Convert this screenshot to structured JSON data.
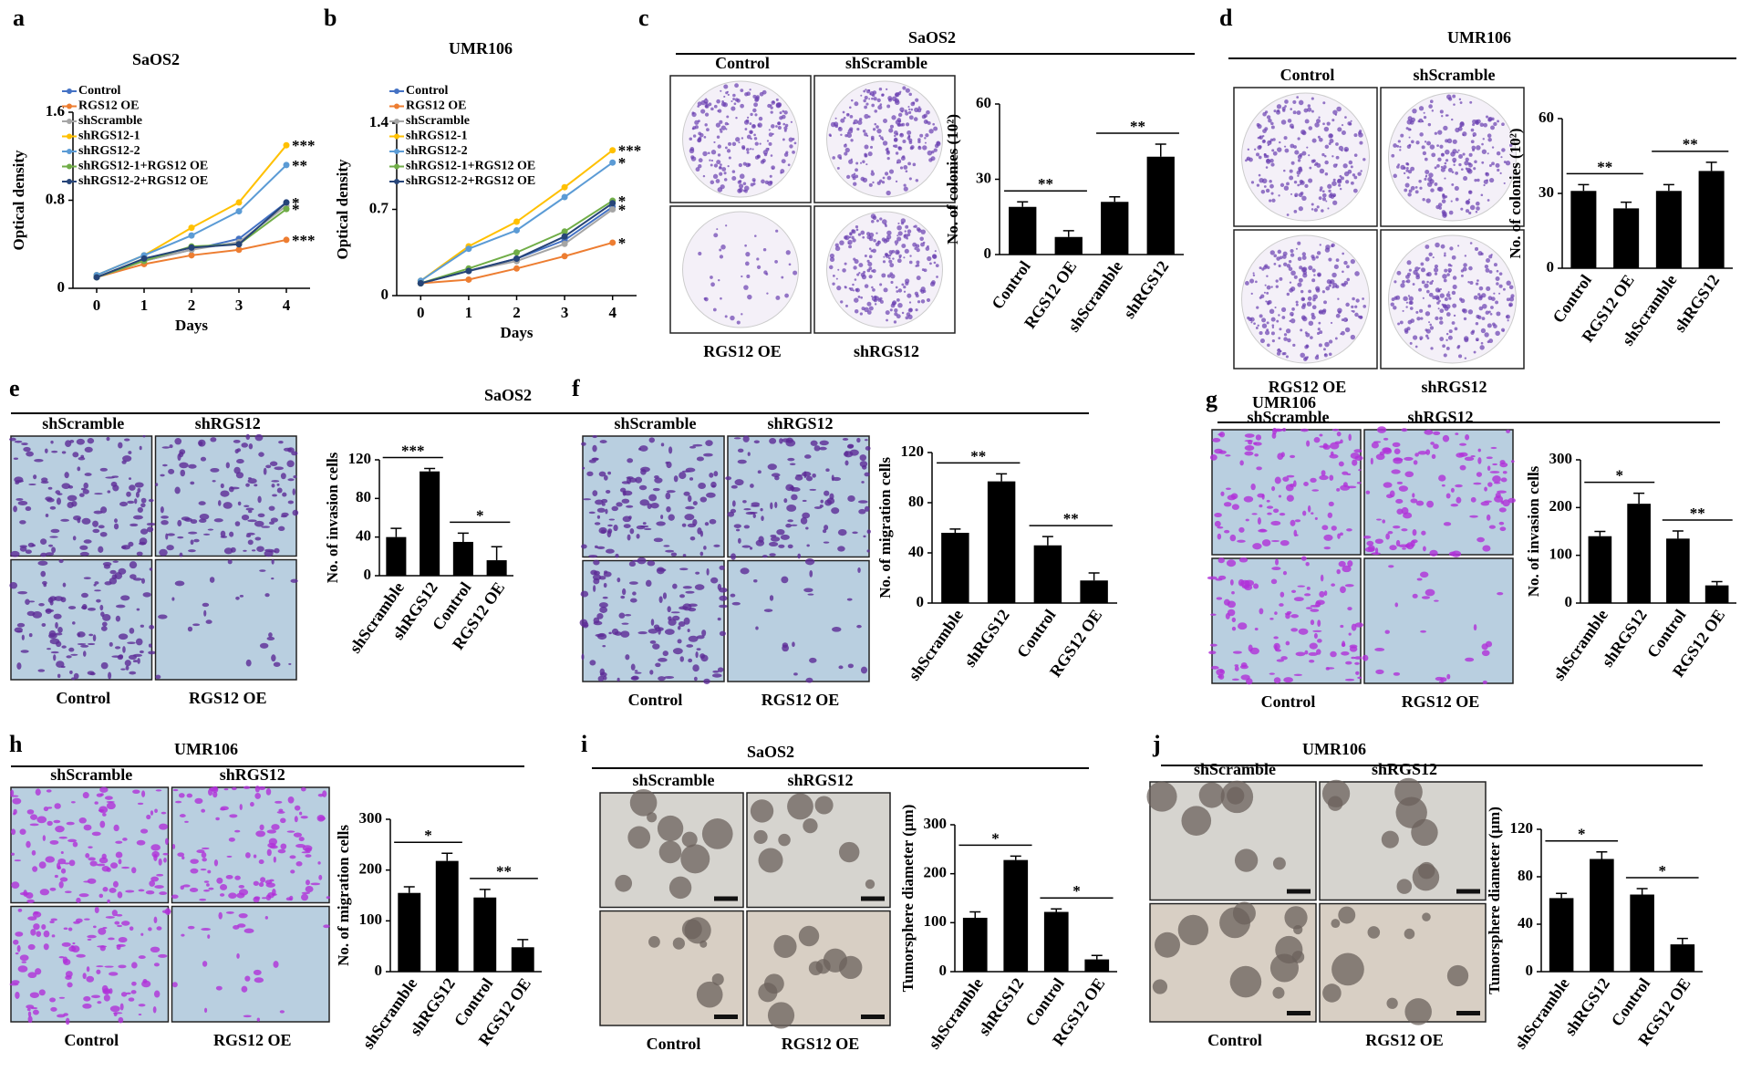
{
  "chart_data": [
    {
      "type": "line",
      "panel": "a",
      "title": "SaOS2",
      "ylabel": "Optical density",
      "xlabel": "Days",
      "xlim": [
        -0.5,
        4.5
      ],
      "xticks": [
        0,
        1,
        2,
        3,
        4
      ],
      "ylim": [
        0,
        1.6
      ],
      "yticks": [
        0,
        0.8,
        1.6
      ],
      "x": [
        0,
        1,
        2,
        3,
        4
      ],
      "series": [
        {
          "name": "Control",
          "color": "#4472c4",
          "values": [
            0.1,
            0.25,
            0.35,
            0.45,
            0.78
          ]
        },
        {
          "name": "RGS12 OE",
          "color": "#ed7d31",
          "values": [
            0.1,
            0.22,
            0.3,
            0.35,
            0.44
          ],
          "annotation": "***"
        },
        {
          "name": "shScramble",
          "color": "#a5a5a5",
          "values": [
            0.1,
            0.25,
            0.35,
            0.42,
            0.75
          ]
        },
        {
          "name": "shRGS12-1",
          "color": "#ffc000",
          "values": [
            0.12,
            0.3,
            0.55,
            0.78,
            1.3
          ],
          "annotation": "***"
        },
        {
          "name": "shRGS12-2",
          "color": "#5b9bd5",
          "values": [
            0.12,
            0.3,
            0.48,
            0.7,
            1.12
          ],
          "annotation": "**"
        },
        {
          "name": "shRGS12-1+RGS12 OE",
          "color": "#70ad47",
          "values": [
            0.1,
            0.25,
            0.38,
            0.4,
            0.72
          ],
          "annotation": "*"
        },
        {
          "name": "shRGS12-2+RGS12 OE",
          "color": "#264478",
          "values": [
            0.1,
            0.27,
            0.37,
            0.4,
            0.78
          ],
          "annotation": "*"
        }
      ]
    },
    {
      "type": "line",
      "panel": "b",
      "title": "UMR106",
      "ylabel": "Optical  density",
      "xlabel": "Days",
      "xlim": [
        -0.5,
        4.5
      ],
      "xticks": [
        0,
        1,
        2,
        3,
        4
      ],
      "ylim": [
        0,
        1.4
      ],
      "yticks": [
        0,
        0.7,
        1.4
      ],
      "x": [
        0,
        1,
        2,
        3,
        4
      ],
      "series": [
        {
          "name": "Control",
          "color": "#4472c4",
          "values": [
            0.1,
            0.2,
            0.3,
            0.45,
            0.72
          ]
        },
        {
          "name": "RGS12 OE",
          "color": "#ed7d31",
          "values": [
            0.1,
            0.13,
            0.22,
            0.32,
            0.43
          ],
          "annotation": "*"
        },
        {
          "name": "shScramble",
          "color": "#a5a5a5",
          "values": [
            0.1,
            0.2,
            0.28,
            0.42,
            0.7
          ],
          "annotation": "*"
        },
        {
          "name": "shRGS12-1",
          "color": "#ffc000",
          "values": [
            0.12,
            0.4,
            0.6,
            0.88,
            1.18
          ],
          "annotation": "***"
        },
        {
          "name": "shRGS12-2",
          "color": "#5b9bd5",
          "values": [
            0.12,
            0.38,
            0.53,
            0.8,
            1.08
          ],
          "annotation": "*"
        },
        {
          "name": "shRGS12-1+RGS12 OE",
          "color": "#70ad47",
          "values": [
            0.1,
            0.22,
            0.35,
            0.52,
            0.77
          ],
          "annotation": "*"
        },
        {
          "name": "shRGS12-2+RGS12 OE",
          "color": "#264478",
          "values": [
            0.1,
            0.2,
            0.3,
            0.48,
            0.75
          ]
        }
      ]
    },
    {
      "type": "bar",
      "panel": "c",
      "title": "SaOS2",
      "image_labels": [
        "Control",
        "shScramble",
        "RGS12 OE",
        "shRGS12"
      ],
      "ylabel": "No. of colonies (10²)",
      "categories": [
        "Control",
        "RGS12 OE",
        "shScramble",
        "shRGS12"
      ],
      "values": [
        19,
        7,
        21,
        39
      ],
      "errors": [
        2,
        2.5,
        2,
        5
      ],
      "color": "#000000",
      "ylim": [
        0,
        60
      ],
      "yticks": [
        0,
        30,
        60
      ],
      "annotations": [
        "**",
        "**"
      ]
    },
    {
      "type": "bar",
      "panel": "d",
      "title": "UMR106",
      "image_labels": [
        "Control",
        "shScramble",
        "RGS12 OE",
        "shRGS12"
      ],
      "ylabel": "No. of colonies (10²)",
      "categories": [
        "Control",
        "RGS12 OE",
        "shScramble",
        "shRGS12"
      ],
      "values": [
        31,
        24,
        31,
        39
      ],
      "errors": [
        2.5,
        2.5,
        2.5,
        3.5
      ],
      "color": "#000000",
      "ylim": [
        0,
        60
      ],
      "yticks": [
        0,
        30,
        60
      ],
      "annotations": [
        "**",
        "**"
      ]
    },
    {
      "type": "bar",
      "panel": "e",
      "title": "SaOS2",
      "image_labels": [
        "shScramble",
        "shRGS12",
        "Control",
        "RGS12 OE"
      ],
      "ylabel": "No. of invasion cells",
      "categories": [
        "shScramble",
        "shRGS12",
        "Control",
        "RGS12 OE"
      ],
      "values": [
        40,
        108,
        35,
        16
      ],
      "errors": [
        9,
        3,
        9,
        14
      ],
      "color": "#000000",
      "ylim": [
        0,
        120
      ],
      "yticks": [
        0,
        40,
        80,
        120
      ],
      "annotations": [
        "***",
        "*"
      ]
    },
    {
      "type": "bar",
      "panel": "f",
      "image_labels": [
        "shScramble",
        "shRGS12",
        "Control",
        "RGS12 OE"
      ],
      "ylabel": "No. of migration cells",
      "categories": [
        "shScramble",
        "shRGS12",
        "Control",
        "RGS12 OE"
      ],
      "values": [
        56,
        97,
        46,
        18
      ],
      "errors": [
        3,
        6,
        7,
        6
      ],
      "color": "#000000",
      "ylim": [
        0,
        120
      ],
      "yticks": [
        0,
        40,
        80,
        120
      ],
      "annotations": [
        "**",
        "**"
      ]
    },
    {
      "type": "bar",
      "panel": "g",
      "title": "UMR106",
      "image_labels": [
        "shScramble",
        "shRGS12",
        "Control",
        "RGS12 OE"
      ],
      "ylabel": "No. of invasion cells",
      "categories": [
        "shScramble",
        "shRGS12",
        "Control",
        "RGS12 OE"
      ],
      "values": [
        140,
        208,
        135,
        37
      ],
      "errors": [
        10,
        22,
        16,
        8
      ],
      "color": "#000000",
      "ylim": [
        0,
        300
      ],
      "yticks": [
        0,
        100,
        200,
        300
      ],
      "annotations": [
        "*",
        "**"
      ]
    },
    {
      "type": "bar",
      "panel": "h",
      "title": "UMR106",
      "image_labels": [
        "shScramble",
        "shRGS12",
        "Control",
        "RGS12 OE"
      ],
      "ylabel": "No. of migration cells",
      "categories": [
        "shScramble",
        "shRGS12",
        "Control",
        "RGS12 OE"
      ],
      "values": [
        155,
        218,
        146,
        48
      ],
      "errors": [
        12,
        15,
        16,
        15
      ],
      "color": "#000000",
      "ylim": [
        0,
        300
      ],
      "yticks": [
        0,
        100,
        200,
        300
      ],
      "annotations": [
        "*",
        "**"
      ]
    },
    {
      "type": "bar",
      "panel": "i",
      "title": "SaOS2",
      "image_labels": [
        "shScramble",
        "shRGS12",
        "Control",
        "RGS12 OE"
      ],
      "ylabel": "Tumorsphere diameter (μm)",
      "categories": [
        "shScramble",
        "shRGS12",
        "Control",
        "RGS12 OE"
      ],
      "values": [
        110,
        228,
        122,
        25
      ],
      "errors": [
        12,
        8,
        6,
        8
      ],
      "color": "#000000",
      "ylim": [
        0,
        300
      ],
      "yticks": [
        0,
        100,
        200,
        300
      ],
      "annotations": [
        "*",
        "*"
      ]
    },
    {
      "type": "bar",
      "panel": "j",
      "title": "UMR106",
      "image_labels": [
        "shScramble",
        "shRGS12",
        "Control",
        "RGS12 OE"
      ],
      "ylabel": "Tumorsphere diameter (μm)",
      "categories": [
        "shScramble",
        "shRGS12",
        "Control",
        "RGS12 OE"
      ],
      "values": [
        62,
        95,
        65,
        23
      ],
      "errors": [
        4,
        6,
        5,
        5
      ],
      "color": "#000000",
      "ylim": [
        0,
        120
      ],
      "yticks": [
        0,
        40,
        80,
        120
      ],
      "annotations": [
        "*",
        "*"
      ]
    }
  ]
}
